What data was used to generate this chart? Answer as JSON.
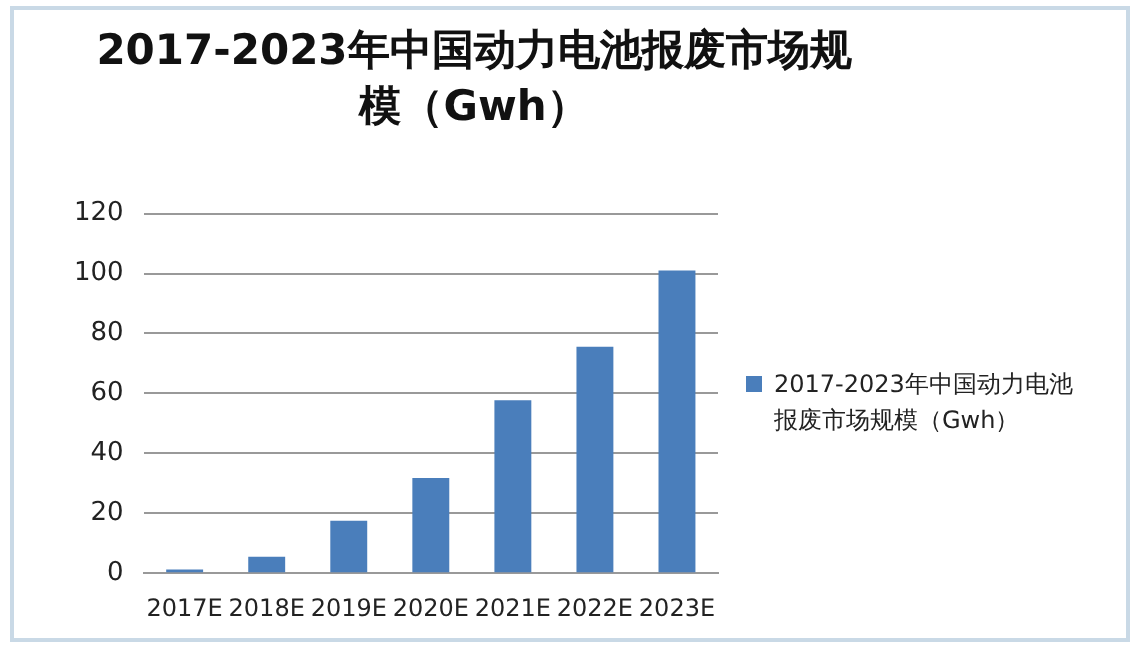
{
  "chart_data": {
    "type": "bar",
    "title": "2017-2023年中国动力电池报废市场规模（Gwh）",
    "categories": [
      "2017E",
      "2018E",
      "2019E",
      "2020E",
      "2021E",
      "2022E",
      "2023E"
    ],
    "series": [
      {
        "name": "2017-2023年中国动力电池报废市场规模（Gwh）",
        "color": "#4a7ebb",
        "values": [
          1.2,
          5.5,
          17.5,
          31.8,
          57.7,
          75.6,
          101
        ]
      }
    ],
    "ylim": [
      0,
      120
    ],
    "yticks": [
      0,
      20,
      40,
      60,
      80,
      100,
      120
    ],
    "grid": "y",
    "legend": "right"
  }
}
